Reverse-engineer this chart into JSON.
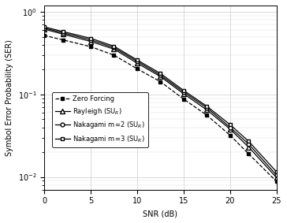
{
  "title": "",
  "xlabel": "SNR (dB)",
  "ylabel": "Symbol Error Probability (SER)",
  "xlim": [
    0,
    25
  ],
  "ylim": [
    0.007,
    1.2
  ],
  "snr": [
    0,
    2,
    5,
    7.5,
    10,
    12.5,
    15,
    17.5,
    20,
    22,
    25
  ],
  "zero_forcing": [
    0.52,
    0.46,
    0.38,
    0.3,
    0.205,
    0.143,
    0.088,
    0.056,
    0.032,
    0.019,
    0.0088
  ],
  "rayleigh": [
    0.62,
    0.54,
    0.44,
    0.355,
    0.24,
    0.165,
    0.102,
    0.065,
    0.038,
    0.023,
    0.0098
  ],
  "nakagami2": [
    0.64,
    0.56,
    0.46,
    0.37,
    0.252,
    0.172,
    0.107,
    0.069,
    0.04,
    0.025,
    0.0105
  ],
  "nakagami3": [
    0.66,
    0.58,
    0.48,
    0.385,
    0.262,
    0.18,
    0.112,
    0.072,
    0.043,
    0.027,
    0.0115
  ],
  "legend_labels": [
    "Zero Forcing",
    "Rayleigh (SU$_R$)",
    "Nakagami m=2 (SU$_R$)",
    "Nakagami m=3 (SU$_R$)"
  ]
}
